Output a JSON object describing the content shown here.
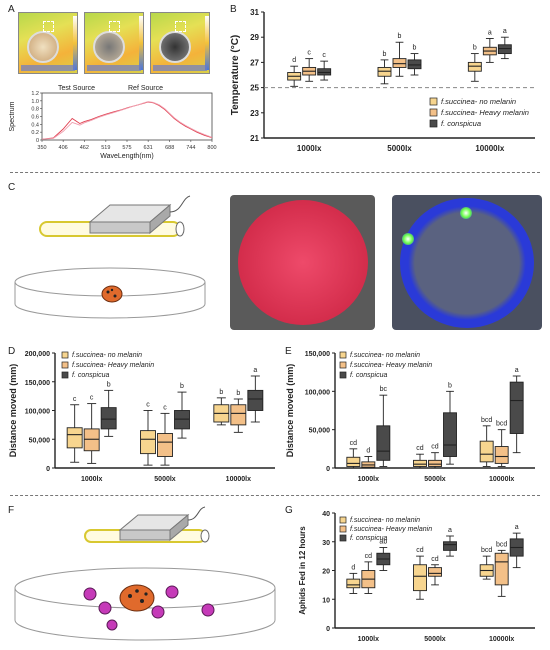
{
  "panels": {
    "A": "A",
    "B": "B",
    "C": "C",
    "D": "D",
    "E": "E",
    "F": "F",
    "G": "G"
  },
  "panelA_legend": {
    "test": "Test Source",
    "ref": "Ref Source"
  },
  "colors": {
    "no_melanin": "#f7d58f",
    "heavy_melanin": "#f3c088",
    "conspicua": "#4a4a4a",
    "red_source": "#e04050",
    "ref_source": "#f0a0b0",
    "dish_red": "#d02a50",
    "heat_blue": "#2438c8"
  },
  "chart_data": [
    {
      "id": "A",
      "type": "line",
      "xlabel": "WaveLength(nm)",
      "ylabel": "Spectrum",
      "ylim": [
        0,
        1.2
      ],
      "yticks": [
        "0",
        "0.2",
        "0.4",
        "0.6",
        "0.8",
        "1.0",
        "1.2"
      ],
      "xticks": [
        "350",
        "406",
        "462",
        "519",
        "575",
        "631",
        "688",
        "744",
        "800"
      ],
      "x": [
        350,
        380,
        406,
        430,
        450,
        462,
        480,
        500,
        519,
        540,
        560,
        575,
        590,
        605,
        620,
        631,
        645,
        660,
        675,
        688,
        700,
        715,
        730,
        744,
        760,
        780,
        800
      ],
      "series": [
        {
          "name": "Test Source",
          "values": [
            0.02,
            0.05,
            0.28,
            0.55,
            0.42,
            0.47,
            0.52,
            0.6,
            0.66,
            0.72,
            0.77,
            0.82,
            0.86,
            0.9,
            0.94,
            0.97,
            0.95,
            0.88,
            0.78,
            0.66,
            0.55,
            0.44,
            0.35,
            0.28,
            0.2,
            0.12,
            0.06
          ]
        },
        {
          "name": "Ref Source",
          "values": [
            0.02,
            0.04,
            0.22,
            0.45,
            0.38,
            0.44,
            0.5,
            0.58,
            0.64,
            0.7,
            0.76,
            0.81,
            0.86,
            0.9,
            0.95,
            0.98,
            0.96,
            0.9,
            0.8,
            0.68,
            0.57,
            0.46,
            0.37,
            0.3,
            0.22,
            0.14,
            0.07
          ]
        }
      ]
    },
    {
      "id": "B",
      "type": "box",
      "ylabel": "Temperature (°C)",
      "ylim": [
        21,
        31
      ],
      "yticks": [
        "21",
        "23",
        "25",
        "27",
        "29",
        "31"
      ],
      "reference_line": 25,
      "categories": [
        "1000lx",
        "5000lx",
        "10000lx"
      ],
      "series": [
        {
          "name": "f.succinea- no melanin",
          "boxes": [
            [
              25.1,
              25.6,
              25.9,
              26.2,
              26.7
            ],
            [
              25.3,
              25.9,
              26.3,
              26.6,
              27.2
            ],
            [
              25.5,
              26.3,
              26.7,
              27.0,
              27.7
            ]
          ],
          "letters": [
            "d",
            "b",
            "b"
          ]
        },
        {
          "name": "f.succinea- Heavy melanin",
          "boxes": [
            [
              25.5,
              26.0,
              26.3,
              26.6,
              27.3
            ],
            [
              25.9,
              26.6,
              26.9,
              27.3,
              28.6
            ],
            [
              27.0,
              27.6,
              27.9,
              28.2,
              28.9
            ]
          ],
          "letters": [
            "c",
            "b",
            "a"
          ]
        },
        {
          "name": "f. conspicua",
          "boxes": [
            [
              25.6,
              26.0,
              26.2,
              26.5,
              27.1
            ],
            [
              26.0,
              26.5,
              26.8,
              27.2,
              27.7
            ],
            [
              27.3,
              27.7,
              28.1,
              28.4,
              29.0
            ]
          ],
          "letters": [
            "c",
            "b",
            "a"
          ]
        }
      ],
      "legend": [
        "f.succinea- no melanin",
        "f.succinea- Heavy melanin",
        "f. conspicua"
      ]
    },
    {
      "id": "D",
      "type": "box",
      "ylabel": "Distance moved (mm)",
      "ylim": [
        0,
        200000
      ],
      "yticks": [
        "0",
        "50,000",
        "100,000",
        "150,000",
        "200,000"
      ],
      "categories": [
        "1000lx",
        "5000lx",
        "10000lx"
      ],
      "series": [
        {
          "name": "f.succinea- no melanin",
          "boxes": [
            [
              10000,
              35000,
              58000,
              70000,
              110000
            ],
            [
              5000,
              25000,
              50000,
              65000,
              100000
            ],
            [
              75000,
              80000,
              95000,
              110000,
              122000
            ]
          ],
          "letters": [
            "c",
            "c",
            "b"
          ]
        },
        {
          "name": "f.succinea- Heavy melanin",
          "boxes": [
            [
              8000,
              30000,
              50000,
              68000,
              112000
            ],
            [
              5000,
              20000,
              45000,
              60000,
              95000
            ],
            [
              62000,
              75000,
              95000,
              110000,
              120000
            ]
          ],
          "letters": [
            "c",
            "c",
            "b"
          ]
        },
        {
          "name": "f. conspicua",
          "boxes": [
            [
              55000,
              68000,
              85000,
              105000,
              135000
            ],
            [
              52000,
              68000,
              85000,
              100000,
              132000
            ],
            [
              80000,
              100000,
              120000,
              135000,
              160000
            ]
          ],
          "letters": [
            "b",
            "b",
            "a"
          ]
        }
      ],
      "legend": [
        "f.succinea- no melanin",
        "f.succinea- Heavy melanin",
        "f. conspicua"
      ]
    },
    {
      "id": "E",
      "type": "box",
      "ylabel": "Distance moved (mm)",
      "ylim": [
        0,
        150000
      ],
      "yticks": [
        "0",
        "50,000",
        "100,000",
        "150,000"
      ],
      "categories": [
        "1000lx",
        "5000lx",
        "10000lx"
      ],
      "series": [
        {
          "name": "f.succinea- no melanin",
          "boxes": [
            [
              0,
              2000,
              6000,
              14000,
              25000
            ],
            [
              0,
              2000,
              5000,
              10000,
              18000
            ],
            [
              2000,
              8000,
              18000,
              35000,
              55000
            ]
          ],
          "letters": [
            "cd",
            "cd",
            "bcd"
          ]
        },
        {
          "name": "f.succinea- Heavy melanin",
          "boxes": [
            [
              0,
              1000,
              4000,
              8000,
              15000
            ],
            [
              0,
              2000,
              5000,
              10000,
              20000
            ],
            [
              2000,
              6000,
              15000,
              28000,
              50000
            ]
          ],
          "letters": [
            "d",
            "cd",
            "bcd"
          ]
        },
        {
          "name": "f. conspicua",
          "boxes": [
            [
              2000,
              10000,
              22000,
              55000,
              95000
            ],
            [
              5000,
              15000,
              30000,
              72000,
              100000
            ],
            [
              20000,
              45000,
              88000,
              112000,
              120000
            ]
          ],
          "letters": [
            "bc",
            "b",
            "a"
          ]
        }
      ],
      "legend": [
        "f.succinea- no melanin",
        "f.succinea- Heavy melanin",
        "f. conspicua"
      ]
    },
    {
      "id": "G",
      "type": "box",
      "ylabel": "Aphids Fed  in 12 hours",
      "ylim": [
        0,
        40
      ],
      "yticks": [
        "0",
        "10",
        "20",
        "30",
        "40"
      ],
      "categories": [
        "1000lx",
        "5000lx",
        "10000lx"
      ],
      "series": [
        {
          "name": "f.succinea- no melanin",
          "boxes": [
            [
              12,
              14,
              15,
              17,
              19
            ],
            [
              10,
              13,
              18,
              22,
              25
            ],
            [
              17,
              18,
              20,
              22,
              25
            ]
          ],
          "letters": [
            "d",
            "cd",
            "bcd"
          ]
        },
        {
          "name": "f.succinea- Heavy melanin",
          "boxes": [
            [
              12,
              14,
              17,
              20,
              23
            ],
            [
              15,
              18,
              19,
              21,
              22
            ],
            [
              11,
              15,
              23,
              26,
              27
            ]
          ],
          "letters": [
            "cd",
            "cd",
            "bcd"
          ]
        },
        {
          "name": "f. conspicua",
          "boxes": [
            [
              20,
              22,
              24,
              26,
              28
            ],
            [
              25,
              27,
              29,
              30,
              32
            ],
            [
              21,
              25,
              28,
              31,
              33
            ]
          ],
          "letters": [
            "ab",
            "a",
            "a"
          ]
        }
      ],
      "legend": [
        "f.succinea- no melanin",
        "f.succinea- Heavy melanin",
        "f. conspicua"
      ]
    }
  ]
}
